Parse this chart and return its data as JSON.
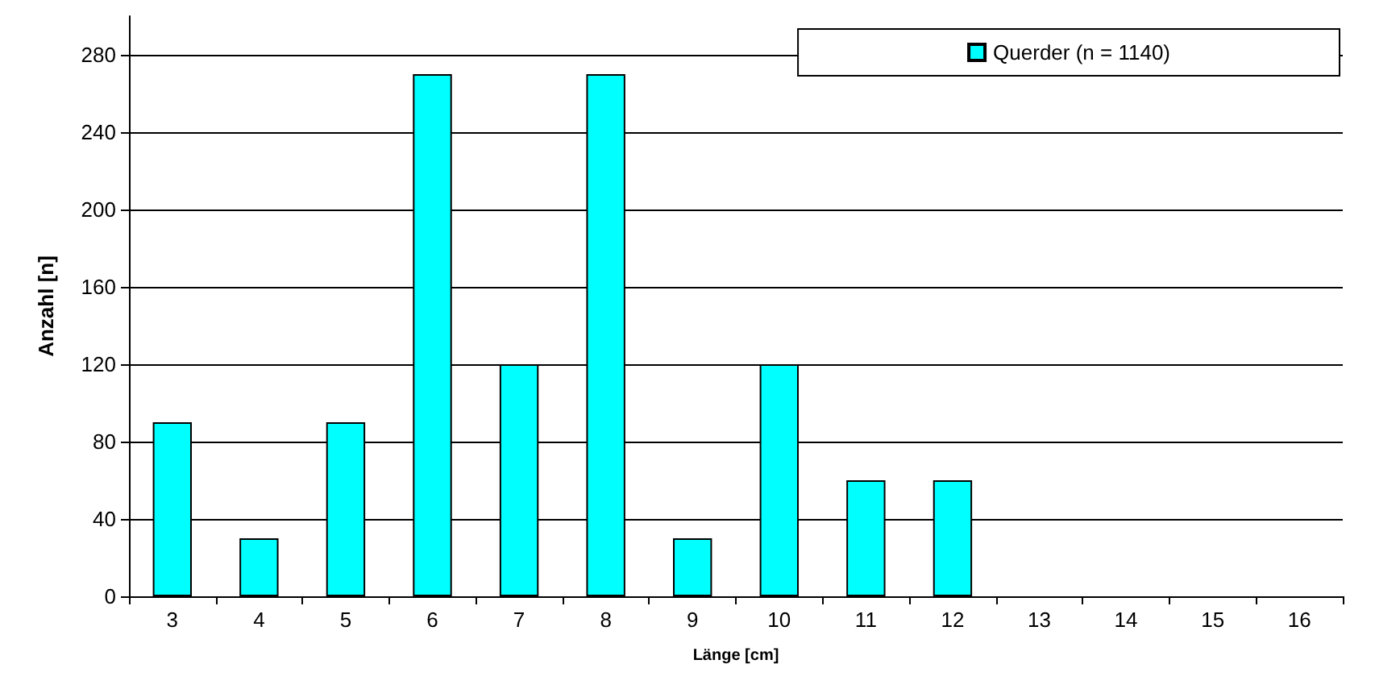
{
  "chart_data": {
    "type": "bar",
    "xlabel": "Länge [cm]",
    "ylabel": "Anzahl [n]",
    "categories": [
      "3",
      "4",
      "5",
      "6",
      "7",
      "8",
      "9",
      "10",
      "11",
      "12",
      "13",
      "14",
      "15",
      "16"
    ],
    "series": [
      {
        "name": "Querder (n = 1140)",
        "color": "#00ffff",
        "values": [
          90,
          30,
          90,
          270,
          120,
          270,
          30,
          120,
          60,
          60,
          0,
          0,
          0,
          0
        ]
      }
    ],
    "ylim": [
      0,
      300
    ],
    "yticks": [
      0,
      40,
      80,
      120,
      160,
      200,
      240,
      280
    ],
    "grid": "y",
    "legend": "top right"
  }
}
